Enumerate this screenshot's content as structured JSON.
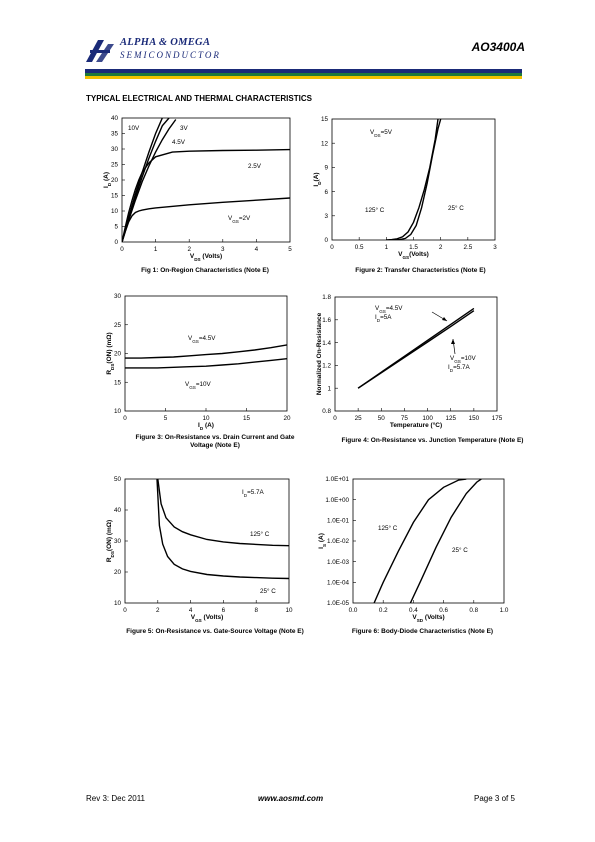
{
  "header": {
    "logo_line1": "ALPHA & OMEGA",
    "logo_line2": "SEMICONDUCTOR",
    "part_number": "AO3400A",
    "stripe_colors": [
      "#1a2a78",
      "#1f7a3a",
      "#f2c200"
    ]
  },
  "section_title": "TYPICAL ELECTRICAL AND THERMAL CHARACTERISTICS",
  "footer": {
    "revision": "Rev 3: Dec 2011",
    "url": "www.aosmd.com",
    "page": "Page 3 of 5"
  },
  "chart_data": [
    {
      "id": "fig1",
      "type": "line",
      "caption": "Fig 1: On-Region Characteristics (Note E)",
      "xlabel": "VDS (Volts)",
      "ylabel": "ID (A)",
      "xlim": [
        0,
        5
      ],
      "ylim": [
        0,
        40
      ],
      "xticks": [
        "0",
        "1",
        "2",
        "3",
        "4",
        "5"
      ],
      "yticks": [
        "0",
        "5",
        "10",
        "15",
        "20",
        "25",
        "30",
        "35",
        "40"
      ],
      "annotations": [
        "10V",
        "3V",
        "4.5V",
        "2.5V",
        "VGS=2V"
      ],
      "series": [
        {
          "name": "10V",
          "x": [
            0,
            0.2,
            0.4,
            0.6,
            0.8,
            1.0,
            1.2
          ],
          "y": [
            0,
            8,
            15.5,
            22.5,
            29,
            35,
            40
          ]
        },
        {
          "name": "4.5V",
          "x": [
            0,
            0.2,
            0.4,
            0.6,
            0.8,
            1.0,
            1.2,
            1.4
          ],
          "y": [
            0,
            7.5,
            14.5,
            21,
            27,
            32.5,
            37.5,
            40
          ]
        },
        {
          "name": "3V",
          "x": [
            0,
            0.2,
            0.4,
            0.6,
            0.8,
            1.0,
            1.2,
            1.4,
            1.6
          ],
          "y": [
            0,
            7,
            13.5,
            19.5,
            24.5,
            29,
            33,
            36.5,
            39.5
          ]
        },
        {
          "name": "2.5V",
          "x": [
            0,
            0.1,
            0.2,
            0.3,
            0.4,
            0.5,
            0.6,
            0.8,
            1.0,
            1.5,
            2,
            3,
            4,
            5
          ],
          "y": [
            0,
            5,
            9.5,
            13.5,
            17,
            20,
            22.5,
            25.5,
            27.5,
            29,
            29.3,
            29.5,
            29.6,
            29.8
          ]
        },
        {
          "name": "VGS=2V",
          "x": [
            0,
            0.1,
            0.2,
            0.3,
            0.4,
            0.5,
            0.6,
            0.8,
            1,
            2,
            3,
            4,
            5
          ],
          "y": [
            0,
            3.5,
            6.5,
            8.5,
            9.5,
            10,
            10.3,
            10.7,
            11,
            12,
            12.8,
            13.5,
            14.2
          ]
        }
      ]
    },
    {
      "id": "fig2",
      "type": "line",
      "caption": "Figure 2: Transfer Characteristics (Note E)",
      "xlabel": "VGS(Volts)",
      "ylabel": "ID(A)",
      "xlim": [
        0,
        3
      ],
      "ylim": [
        0,
        15
      ],
      "xticks": [
        "0",
        "0.5",
        "1",
        "1.5",
        "2",
        "2.5",
        "3"
      ],
      "yticks": [
        "0",
        "3",
        "6",
        "9",
        "12",
        "15"
      ],
      "annotations": [
        "VDS=5V",
        "125° C",
        "25° C"
      ],
      "series": [
        {
          "name": "125° C",
          "x": [
            1.0,
            1.1,
            1.2,
            1.3,
            1.4,
            1.5,
            1.6,
            1.7,
            1.8,
            1.9,
            1.95
          ],
          "y": [
            0,
            0.05,
            0.15,
            0.4,
            1.0,
            2.2,
            4.0,
            6.3,
            9.0,
            12.5,
            15
          ]
        },
        {
          "name": "25° C",
          "x": [
            1.15,
            1.25,
            1.35,
            1.45,
            1.55,
            1.65,
            1.75,
            1.85,
            1.95,
            2.0
          ],
          "y": [
            0,
            0.05,
            0.2,
            0.7,
            1.8,
            4.0,
            7.0,
            10.5,
            13.8,
            15
          ]
        }
      ]
    },
    {
      "id": "fig3",
      "type": "line",
      "caption": "Figure 3: On-Resistance vs. Drain Current and Gate Voltage (Note E)",
      "xlabel": "ID (A)",
      "ylabel": "RDS(ON) (mΩ)",
      "xlim": [
        0,
        20
      ],
      "ylim": [
        10,
        30
      ],
      "xticks": [
        "0",
        "5",
        "10",
        "15",
        "20"
      ],
      "yticks": [
        "10",
        "15",
        "20",
        "25",
        "30"
      ],
      "annotations": [
        "VGS=4.5V",
        "VGS=10V"
      ],
      "series": [
        {
          "name": "VGS=4.5V",
          "x": [
            0,
            2,
            4,
            6,
            8,
            10,
            12,
            14,
            16,
            18,
            20
          ],
          "y": [
            19.2,
            19.2,
            19.3,
            19.4,
            19.6,
            19.8,
            20.0,
            20.3,
            20.6,
            21.0,
            21.5
          ]
        },
        {
          "name": "VGS=10V",
          "x": [
            0,
            2,
            4,
            6,
            8,
            10,
            12,
            14,
            16,
            18,
            20
          ],
          "y": [
            17.5,
            17.5,
            17.5,
            17.6,
            17.7,
            17.8,
            18.0,
            18.2,
            18.5,
            18.8,
            19.1
          ]
        }
      ]
    },
    {
      "id": "fig4",
      "type": "line",
      "caption": "Figure 4: On-Resistance vs. Junction Temperature (Note E)",
      "xlabel": "Temperature (°C)",
      "ylabel": "Normalized On-Resistance",
      "xlim": [
        0,
        175
      ],
      "ylim": [
        0.8,
        1.8
      ],
      "xticks": [
        "0",
        "25",
        "50",
        "75",
        "100",
        "125",
        "150",
        "175"
      ],
      "yticks": [
        "0.8",
        "1",
        "1.2",
        "1.4",
        "1.6",
        "1.8"
      ],
      "annotations": [
        "VGS=4.5V",
        "ID=5A",
        "VGS=10V",
        "ID=5.7A"
      ],
      "series": [
        {
          "name": "VGS=4.5V",
          "x": [
            25,
            50,
            75,
            100,
            125,
            150
          ],
          "y": [
            1.0,
            1.14,
            1.28,
            1.42,
            1.56,
            1.7
          ]
        },
        {
          "name": "VGS=10V",
          "x": [
            25,
            50,
            75,
            100,
            125,
            150
          ],
          "y": [
            1.0,
            1.135,
            1.27,
            1.405,
            1.54,
            1.68
          ]
        }
      ]
    },
    {
      "id": "fig5",
      "type": "line",
      "caption": "Figure 5: On-Resistance vs. Gate-Source Voltage (Note E)",
      "xlabel": "VGS (Volts)",
      "ylabel": "RDS(ON) (mΩ)",
      "xlim": [
        0,
        10
      ],
      "ylim": [
        10,
        50
      ],
      "xticks": [
        "0",
        "2",
        "4",
        "6",
        "8",
        "10"
      ],
      "yticks": [
        "10",
        "20",
        "30",
        "40",
        "50"
      ],
      "annotations": [
        "ID=5.7A",
        "125° C",
        "25° C"
      ],
      "series": [
        {
          "name": "125° C",
          "x": [
            2.0,
            2.2,
            2.5,
            3,
            3.5,
            4,
            5,
            6,
            7,
            8,
            9,
            10
          ],
          "y": [
            50,
            42,
            37.5,
            34.5,
            33,
            32,
            30.5,
            29.7,
            29.2,
            28.9,
            28.6,
            28.5
          ]
        },
        {
          "name": "25° C",
          "x": [
            1.95,
            2.1,
            2.3,
            2.6,
            3,
            3.5,
            4,
            5,
            6,
            7,
            8,
            9,
            10
          ],
          "y": [
            50,
            35,
            29,
            25,
            22.5,
            21,
            20.2,
            19.2,
            18.7,
            18.4,
            18.2,
            18.0,
            17.9
          ]
        }
      ]
    },
    {
      "id": "fig6",
      "type": "line",
      "caption": "Figure 6: Body-Diode Characteristics (Note E)",
      "xlabel": "VSD (Volts)",
      "ylabel": "IS (A)",
      "xlim": [
        0,
        1.0
      ],
      "ylim": [
        -5,
        1
      ],
      "yscale": "log",
      "xticks": [
        "0.0",
        "0.2",
        "0.4",
        "0.6",
        "0.8",
        "1.0"
      ],
      "yticks": [
        "1.0E-05",
        "1.0E-04",
        "1.0E-03",
        "1.0E-02",
        "1.0E-01",
        "1.0E+00",
        "1.0E+01"
      ],
      "annotations": [
        "125° C",
        "25° C"
      ],
      "series": [
        {
          "name": "125° C",
          "x": [
            0.14,
            0.2,
            0.3,
            0.4,
            0.5,
            0.6,
            0.7,
            0.75
          ],
          "y": [
            -5,
            -4,
            -2.5,
            -1.1,
            0.0,
            0.6,
            0.95,
            1.0
          ]
        },
        {
          "name": "25° C",
          "x": [
            0.38,
            0.45,
            0.55,
            0.65,
            0.75,
            0.82,
            0.85
          ],
          "y": [
            -5,
            -3.9,
            -2.3,
            -0.85,
            0.3,
            0.85,
            1.0
          ]
        }
      ]
    }
  ]
}
